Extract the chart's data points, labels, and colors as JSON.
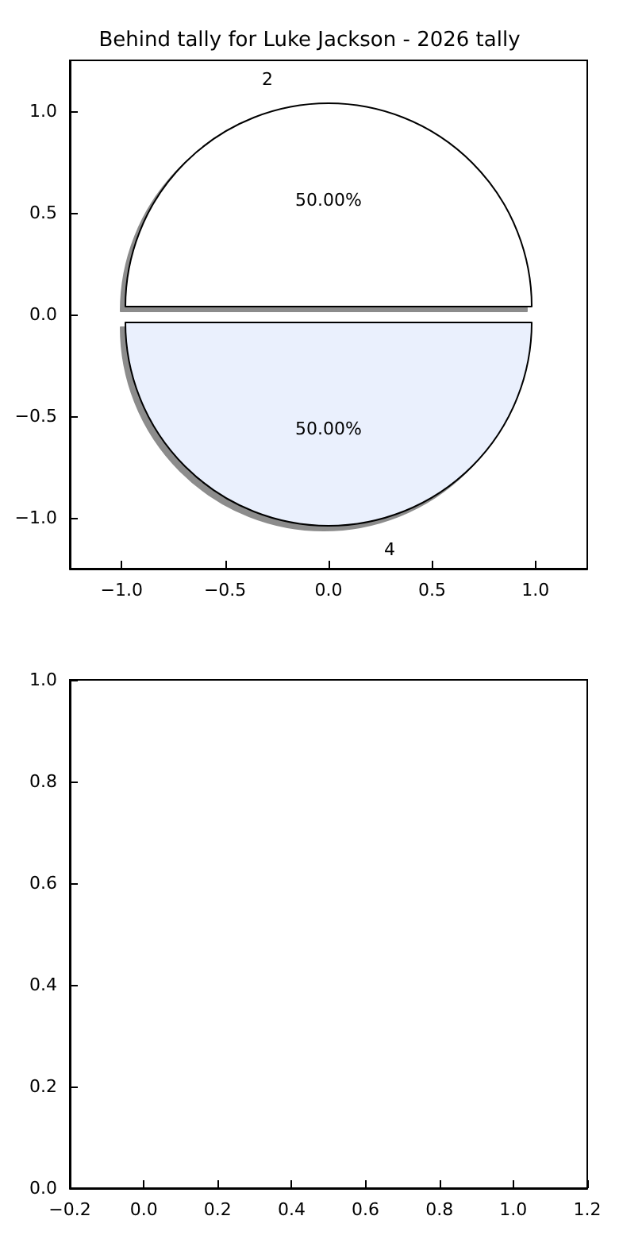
{
  "chart_data": [
    {
      "type": "scatter",
      "title": "Behind tally for Luke Jackson - 2026 tally",
      "xlim": [
        -1.25,
        1.25
      ],
      "ylim": [
        -1.25,
        1.25
      ],
      "xticks": [
        {
          "value": -1,
          "label": "−1.0"
        },
        {
          "value": -0.5,
          "label": "−0.5"
        },
        {
          "value": 0,
          "label": "0.0"
        },
        {
          "value": 0.5,
          "label": "0.5"
        },
        {
          "value": 1,
          "label": "1.0"
        }
      ],
      "yticks": [
        {
          "value": -1,
          "label": "−1.0"
        },
        {
          "value": -0.5,
          "label": "−0.5"
        },
        {
          "value": 0,
          "label": "0.0"
        },
        {
          "value": 0.5,
          "label": "0.5"
        },
        {
          "value": 1,
          "label": "1.0"
        }
      ]
    },
    {
      "type": "pie",
      "categories": [
        "2",
        "4"
      ],
      "values": [
        50,
        50
      ],
      "colors": [
        "#ffffff",
        "#eaf0fd"
      ],
      "value_labels": [
        "50.00%",
        "50.00%"
      ]
    },
    {
      "type": "scatter",
      "xlim": [
        -0.2,
        1.2
      ],
      "ylim": [
        0,
        1
      ],
      "xticks": [
        {
          "value": -0.2,
          "label": "−0.2"
        },
        {
          "value": 0,
          "label": "0.0"
        },
        {
          "value": 0.2,
          "label": "0.2"
        },
        {
          "value": 0.4,
          "label": "0.4"
        },
        {
          "value": 0.6,
          "label": "0.6"
        },
        {
          "value": 0.8,
          "label": "0.8"
        },
        {
          "value": 1,
          "label": "1.0"
        },
        {
          "value": 1.2,
          "label": "1.2"
        }
      ],
      "yticks": [
        {
          "value": 0,
          "label": "0.0"
        },
        {
          "value": 0.2,
          "label": "0.2"
        },
        {
          "value": 0.4,
          "label": "0.4"
        },
        {
          "value": 0.6,
          "label": "0.6"
        },
        {
          "value": 0.8,
          "label": "0.8"
        },
        {
          "value": 1,
          "label": "1.0"
        }
      ]
    }
  ]
}
